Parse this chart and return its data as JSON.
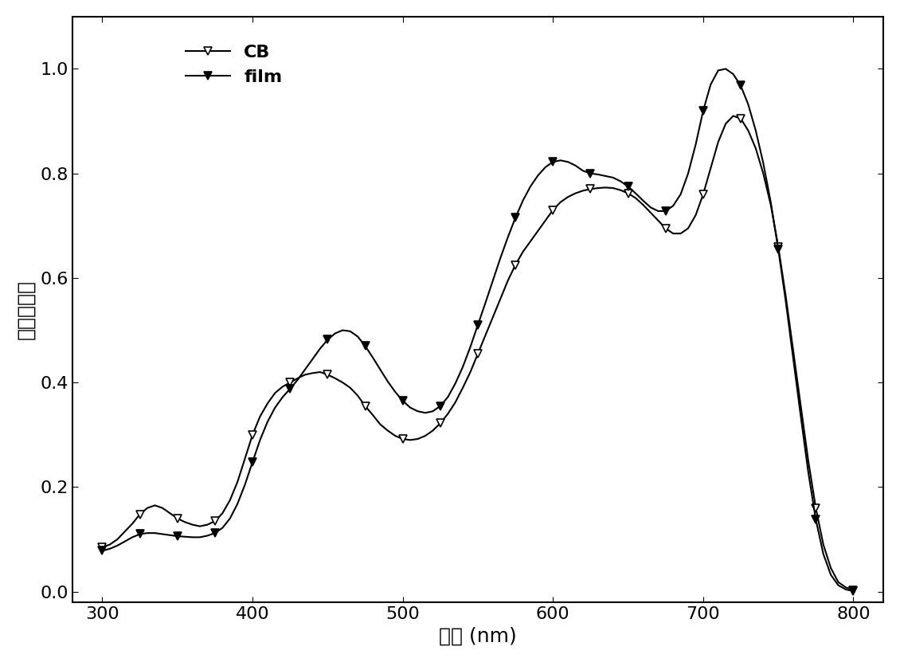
{
  "title": "",
  "xlabel": "波长 (nm)",
  "ylabel": "归一化吸收",
  "xlim": [
    280,
    820
  ],
  "ylim": [
    -0.02,
    1.1
  ],
  "xticks": [
    300,
    400,
    500,
    600,
    700,
    800
  ],
  "yticks": [
    0.0,
    0.2,
    0.4,
    0.6,
    0.8,
    1.0
  ],
  "background_color": "#ffffff",
  "line_color": "#000000",
  "legend_labels": [
    "CB",
    "film"
  ],
  "CB_x": [
    300,
    305,
    310,
    315,
    320,
    325,
    330,
    335,
    340,
    345,
    350,
    355,
    360,
    365,
    370,
    375,
    380,
    385,
    390,
    395,
    400,
    405,
    410,
    415,
    420,
    425,
    430,
    435,
    440,
    445,
    450,
    455,
    460,
    465,
    470,
    475,
    480,
    485,
    490,
    495,
    500,
    505,
    510,
    515,
    520,
    525,
    530,
    535,
    540,
    545,
    550,
    555,
    560,
    565,
    570,
    575,
    580,
    585,
    590,
    595,
    600,
    605,
    610,
    615,
    620,
    625,
    630,
    635,
    640,
    645,
    650,
    655,
    660,
    665,
    670,
    675,
    680,
    685,
    690,
    695,
    700,
    705,
    710,
    715,
    720,
    725,
    730,
    735,
    740,
    745,
    750,
    755,
    760,
    765,
    770,
    775,
    780,
    785,
    790,
    795,
    800
  ],
  "CB_y": [
    0.085,
    0.09,
    0.1,
    0.115,
    0.13,
    0.148,
    0.16,
    0.165,
    0.16,
    0.15,
    0.14,
    0.133,
    0.128,
    0.125,
    0.128,
    0.135,
    0.15,
    0.175,
    0.21,
    0.255,
    0.3,
    0.335,
    0.36,
    0.38,
    0.392,
    0.4,
    0.408,
    0.415,
    0.418,
    0.42,
    0.415,
    0.408,
    0.4,
    0.39,
    0.375,
    0.355,
    0.338,
    0.32,
    0.308,
    0.298,
    0.292,
    0.29,
    0.292,
    0.298,
    0.308,
    0.322,
    0.34,
    0.362,
    0.39,
    0.42,
    0.455,
    0.49,
    0.525,
    0.56,
    0.595,
    0.625,
    0.65,
    0.67,
    0.69,
    0.71,
    0.73,
    0.745,
    0.755,
    0.762,
    0.767,
    0.77,
    0.772,
    0.773,
    0.772,
    0.768,
    0.762,
    0.753,
    0.74,
    0.725,
    0.71,
    0.695,
    0.685,
    0.685,
    0.695,
    0.72,
    0.76,
    0.81,
    0.86,
    0.895,
    0.91,
    0.905,
    0.882,
    0.848,
    0.8,
    0.74,
    0.66,
    0.565,
    0.46,
    0.355,
    0.25,
    0.16,
    0.09,
    0.045,
    0.018,
    0.008,
    0.003
  ],
  "film_x": [
    300,
    305,
    310,
    315,
    320,
    325,
    330,
    335,
    340,
    345,
    350,
    355,
    360,
    365,
    370,
    375,
    380,
    385,
    390,
    395,
    400,
    405,
    410,
    415,
    420,
    425,
    430,
    435,
    440,
    445,
    450,
    455,
    460,
    465,
    470,
    475,
    480,
    485,
    490,
    495,
    500,
    505,
    510,
    515,
    520,
    525,
    530,
    535,
    540,
    545,
    550,
    555,
    560,
    565,
    570,
    575,
    580,
    585,
    590,
    595,
    600,
    605,
    610,
    615,
    620,
    625,
    630,
    635,
    640,
    645,
    650,
    655,
    660,
    665,
    670,
    675,
    680,
    685,
    690,
    695,
    700,
    705,
    710,
    715,
    720,
    725,
    730,
    735,
    740,
    745,
    750,
    755,
    760,
    765,
    770,
    775,
    780,
    785,
    790,
    795,
    800
  ],
  "film_y": [
    0.078,
    0.082,
    0.088,
    0.096,
    0.104,
    0.11,
    0.112,
    0.112,
    0.11,
    0.108,
    0.106,
    0.105,
    0.104,
    0.104,
    0.107,
    0.112,
    0.122,
    0.14,
    0.168,
    0.205,
    0.248,
    0.29,
    0.325,
    0.352,
    0.372,
    0.388,
    0.405,
    0.425,
    0.445,
    0.465,
    0.482,
    0.494,
    0.5,
    0.498,
    0.488,
    0.47,
    0.448,
    0.425,
    0.402,
    0.382,
    0.365,
    0.352,
    0.345,
    0.342,
    0.345,
    0.355,
    0.372,
    0.398,
    0.43,
    0.468,
    0.51,
    0.552,
    0.595,
    0.638,
    0.678,
    0.715,
    0.748,
    0.775,
    0.796,
    0.812,
    0.822,
    0.825,
    0.822,
    0.815,
    0.805,
    0.8,
    0.798,
    0.795,
    0.792,
    0.785,
    0.775,
    0.762,
    0.748,
    0.735,
    0.728,
    0.728,
    0.738,
    0.76,
    0.8,
    0.855,
    0.92,
    0.97,
    0.997,
    1.0,
    0.99,
    0.968,
    0.932,
    0.882,
    0.82,
    0.745,
    0.655,
    0.555,
    0.445,
    0.335,
    0.228,
    0.138,
    0.072,
    0.032,
    0.012,
    0.004,
    0.001
  ],
  "marker_interval": 5,
  "markersize": 7,
  "linewidth": 1.5,
  "xlabel_fontsize": 18,
  "ylabel_fontsize": 18,
  "tick_fontsize": 16,
  "legend_fontsize": 16
}
